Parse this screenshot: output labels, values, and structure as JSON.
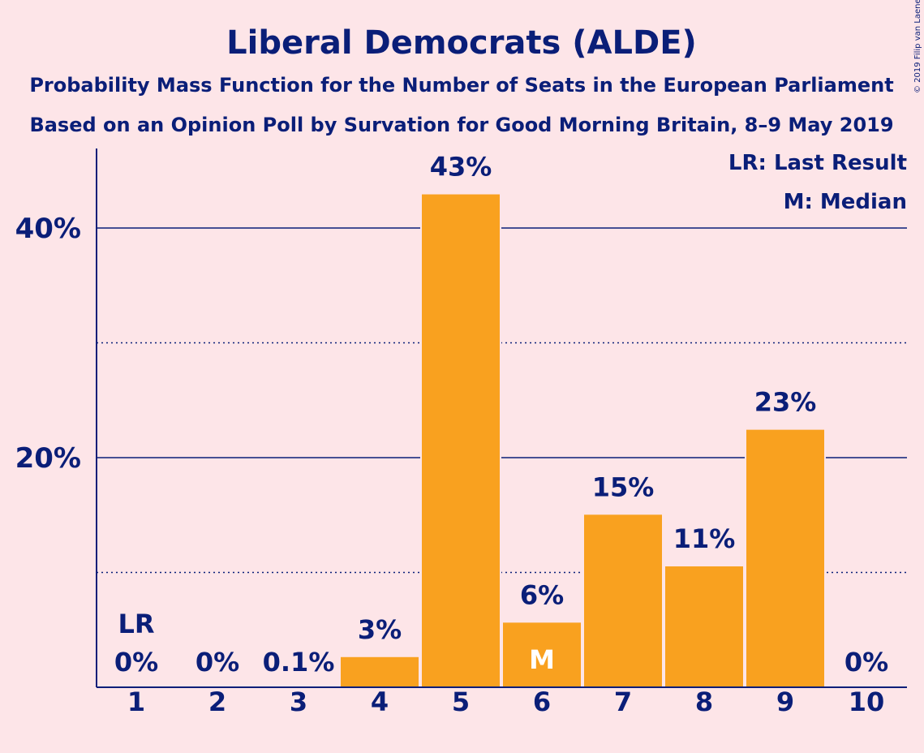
{
  "chart_data": {
    "type": "bar",
    "title": "Liberal Democrats (ALDE)",
    "subtitle_lines": [
      "Probability Mass Function for the Number of Seats in the European Parliament",
      "Based on an Opinion Poll by Survation for Good Morning Britain, 8–9 May 2019"
    ],
    "categories": [
      "1",
      "2",
      "3",
      "4",
      "5",
      "6",
      "7",
      "8",
      "9",
      "10"
    ],
    "values": [
      0,
      0,
      0.1,
      2.7,
      43.0,
      5.7,
      15.1,
      10.6,
      22.5,
      0
    ],
    "data_labels": [
      "0%",
      "0%",
      "0.1%",
      "3%",
      "43%",
      "6%",
      "15%",
      "11%",
      "23%",
      "0%"
    ],
    "ylim": [
      0,
      47
    ],
    "y_ticks": [
      {
        "value": 20,
        "label": "20%"
      },
      {
        "value": 40,
        "label": "40%"
      }
    ],
    "minor_gridlines": [
      10,
      30
    ],
    "grid": true,
    "last_result": {
      "category": "1",
      "marker": "LR"
    },
    "median": {
      "category": "6",
      "marker": "M"
    },
    "legend": {
      "placement": "top-right",
      "items": [
        "LR: Last Result",
        "M: Median"
      ]
    },
    "credit": "© 2019 Filip van Laenen",
    "colors": {
      "background": "#FDE5E8",
      "bar": "#F9A11F",
      "text": "#0A1E78",
      "marker_in_bar": "#FFFFFF"
    }
  }
}
